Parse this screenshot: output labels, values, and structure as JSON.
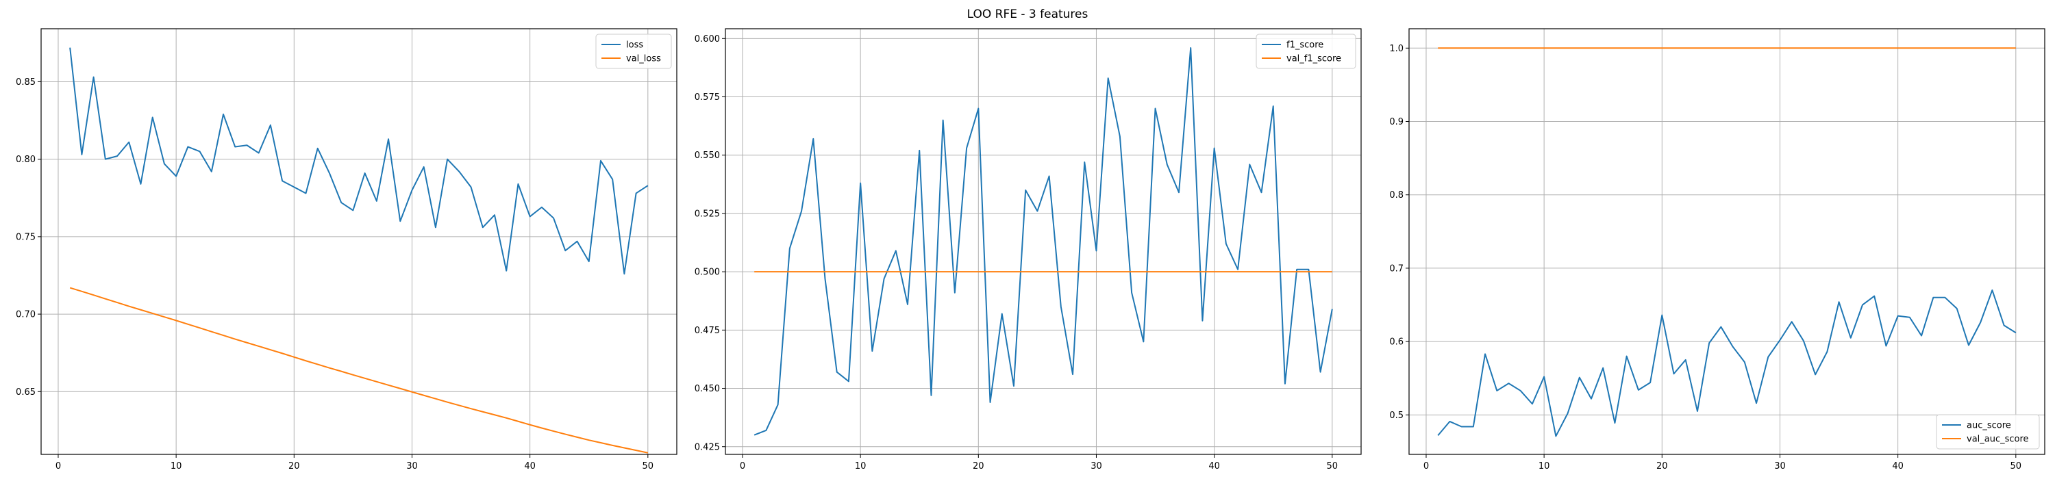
{
  "title": "LOO RFE - 3 features",
  "chart_data": [
    {
      "type": "line",
      "title": "",
      "xlabel": "",
      "ylabel": "",
      "xlim": [
        -1.45,
        52.45
      ],
      "ylim": [
        0.6095,
        0.8842
      ],
      "xticks": [
        0,
        10,
        20,
        30,
        40,
        50
      ],
      "yticks": [
        0.65,
        0.7,
        0.75,
        0.8,
        0.85
      ],
      "yticklabels": [
        "0.65",
        "0.70",
        "0.75",
        "0.80",
        "0.85"
      ],
      "grid": true,
      "legend_position": "top-right",
      "x": [
        1,
        2,
        3,
        4,
        5,
        6,
        7,
        8,
        9,
        10,
        11,
        12,
        13,
        14,
        15,
        16,
        17,
        18,
        19,
        20,
        21,
        22,
        23,
        24,
        25,
        26,
        27,
        28,
        29,
        30,
        31,
        32,
        33,
        34,
        35,
        36,
        37,
        38,
        39,
        40,
        41,
        42,
        43,
        44,
        45,
        46,
        47,
        48,
        49,
        50
      ],
      "series": [
        {
          "name": "loss",
          "color": "#1f77b4",
          "values": [
            0.872,
            0.803,
            0.853,
            0.8,
            0.802,
            0.811,
            0.784,
            0.827,
            0.797,
            0.789,
            0.808,
            0.805,
            0.792,
            0.829,
            0.808,
            0.809,
            0.804,
            0.822,
            0.786,
            0.782,
            0.778,
            0.807,
            0.791,
            0.772,
            0.767,
            0.791,
            0.773,
            0.813,
            0.76,
            0.78,
            0.795,
            0.756,
            0.8,
            0.792,
            0.782,
            0.756,
            0.764,
            0.728,
            0.784,
            0.763,
            0.769,
            0.762,
            0.741,
            0.747,
            0.734,
            0.799,
            0.787,
            0.726,
            0.778,
            0.783
          ]
        },
        {
          "name": "val_loss",
          "color": "#ff7f0e",
          "values": [
            0.717,
            0.7147,
            0.7123,
            0.7099,
            0.7075,
            0.7051,
            0.7028,
            0.7005,
            0.6982,
            0.6959,
            0.6935,
            0.6911,
            0.6887,
            0.6863,
            0.6839,
            0.6816,
            0.6793,
            0.677,
            0.6747,
            0.6723,
            0.6699,
            0.6676,
            0.6653,
            0.6631,
            0.6608,
            0.6586,
            0.6564,
            0.6542,
            0.652,
            0.6498,
            0.6476,
            0.6454,
            0.6432,
            0.6411,
            0.639,
            0.637,
            0.635,
            0.633,
            0.6308,
            0.6286,
            0.6265,
            0.6245,
            0.6225,
            0.6206,
            0.6187,
            0.617,
            0.6153,
            0.6137,
            0.6121,
            0.6105
          ]
        }
      ]
    },
    {
      "type": "line",
      "title": "",
      "xlabel": "",
      "ylabel": "",
      "xlim": [
        -1.45,
        52.45
      ],
      "ylim": [
        0.4217,
        0.6042
      ],
      "xticks": [
        0,
        10,
        20,
        30,
        40,
        50
      ],
      "yticks": [
        0.425,
        0.45,
        0.475,
        0.5,
        0.525,
        0.55,
        0.575,
        0.6
      ],
      "yticklabels": [
        "0.425",
        "0.450",
        "0.475",
        "0.500",
        "0.525",
        "0.550",
        "0.575",
        "0.600"
      ],
      "grid": true,
      "legend_position": "top-right",
      "x": [
        1,
        2,
        3,
        4,
        5,
        6,
        7,
        8,
        9,
        10,
        11,
        12,
        13,
        14,
        15,
        16,
        17,
        18,
        19,
        20,
        21,
        22,
        23,
        24,
        25,
        26,
        27,
        28,
        29,
        30,
        31,
        32,
        33,
        34,
        35,
        36,
        37,
        38,
        39,
        40,
        41,
        42,
        43,
        44,
        45,
        46,
        47,
        48,
        49,
        50
      ],
      "series": [
        {
          "name": "f1_score",
          "color": "#1f77b4",
          "values": [
            0.43,
            0.432,
            0.443,
            0.51,
            0.526,
            0.557,
            0.497,
            0.457,
            0.453,
            0.538,
            0.466,
            0.497,
            0.509,
            0.486,
            0.552,
            0.447,
            0.565,
            0.491,
            0.553,
            0.57,
            0.444,
            0.482,
            0.451,
            0.535,
            0.526,
            0.541,
            0.485,
            0.456,
            0.547,
            0.509,
            0.583,
            0.558,
            0.491,
            0.47,
            0.57,
            0.546,
            0.534,
            0.596,
            0.479,
            0.553,
            0.512,
            0.501,
            0.546,
            0.534,
            0.571,
            0.452,
            0.501,
            0.501,
            0.457,
            0.484
          ]
        },
        {
          "name": "val_f1_score",
          "color": "#ff7f0e",
          "values": [
            0.5,
            0.5,
            0.5,
            0.5,
            0.5,
            0.5,
            0.5,
            0.5,
            0.5,
            0.5,
            0.5,
            0.5,
            0.5,
            0.5,
            0.5,
            0.5,
            0.5,
            0.5,
            0.5,
            0.5,
            0.5,
            0.5,
            0.5,
            0.5,
            0.5,
            0.5,
            0.5,
            0.5,
            0.5,
            0.5,
            0.5,
            0.5,
            0.5,
            0.5,
            0.5,
            0.5,
            0.5,
            0.5,
            0.5,
            0.5,
            0.5,
            0.5,
            0.5,
            0.5,
            0.5,
            0.5,
            0.5,
            0.5,
            0.5,
            0.5
          ]
        }
      ]
    },
    {
      "type": "line",
      "title": "",
      "xlabel": "",
      "ylabel": "",
      "xlim": [
        -1.45,
        52.45
      ],
      "ylim": [
        0.4462,
        1.0264
      ],
      "xticks": [
        0,
        10,
        20,
        30,
        40,
        50
      ],
      "yticks": [
        0.5,
        0.6,
        0.7,
        0.8,
        0.9,
        1.0
      ],
      "yticklabels": [
        "0.5",
        "0.6",
        "0.7",
        "0.8",
        "0.9",
        "1.0"
      ],
      "grid": true,
      "legend_position": "bottom-right",
      "x": [
        1,
        2,
        3,
        4,
        5,
        6,
        7,
        8,
        9,
        10,
        11,
        12,
        13,
        14,
        15,
        16,
        17,
        18,
        19,
        20,
        21,
        22,
        23,
        24,
        25,
        26,
        27,
        28,
        29,
        30,
        31,
        32,
        33,
        34,
        35,
        36,
        37,
        38,
        39,
        40,
        41,
        42,
        43,
        44,
        45,
        46,
        47,
        48,
        49,
        50
      ],
      "series": [
        {
          "name": "auc_score",
          "color": "#1f77b4",
          "values": [
            0.472,
            0.491,
            0.484,
            0.484,
            0.583,
            0.533,
            0.543,
            0.533,
            0.515,
            0.552,
            0.471,
            0.502,
            0.551,
            0.522,
            0.564,
            0.489,
            0.58,
            0.534,
            0.544,
            0.636,
            0.556,
            0.575,
            0.505,
            0.598,
            0.62,
            0.593,
            0.572,
            0.516,
            0.579,
            0.602,
            0.627,
            0.601,
            0.555,
            0.586,
            0.654,
            0.605,
            0.65,
            0.662,
            0.594,
            0.635,
            0.633,
            0.608,
            0.66,
            0.66,
            0.645,
            0.595,
            0.626,
            0.67,
            0.622,
            0.612
          ]
        },
        {
          "name": "val_auc_score",
          "color": "#ff7f0e",
          "values": [
            1.0,
            1.0,
            1.0,
            1.0,
            1.0,
            1.0,
            1.0,
            1.0,
            1.0,
            1.0,
            1.0,
            1.0,
            1.0,
            1.0,
            1.0,
            1.0,
            1.0,
            1.0,
            1.0,
            1.0,
            1.0,
            1.0,
            1.0,
            1.0,
            1.0,
            1.0,
            1.0,
            1.0,
            1.0,
            1.0,
            1.0,
            1.0,
            1.0,
            1.0,
            1.0,
            1.0,
            1.0,
            1.0,
            1.0,
            1.0,
            1.0,
            1.0,
            1.0,
            1.0,
            1.0,
            1.0,
            1.0,
            1.0,
            1.0,
            1.0
          ]
        }
      ]
    }
  ]
}
